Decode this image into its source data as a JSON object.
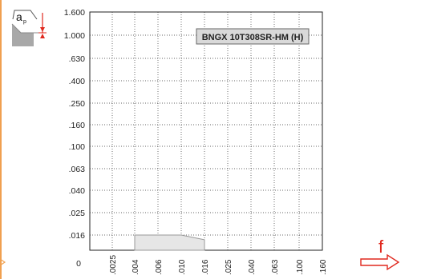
{
  "chart_data": {
    "type": "area",
    "legend": "BNGX 10T308SR-HM (H)",
    "y_ticks": [
      "1.600",
      "1.000",
      ".630",
      ".400",
      ".250",
      ".160",
      ".100",
      ".063",
      ".040",
      ".025",
      ".016",
      "0"
    ],
    "x_ticks": [
      ".0025",
      ".004",
      ".006",
      ".010",
      ".016",
      ".025",
      ".040",
      ".063",
      ".100",
      ".160"
    ],
    "region": {
      "f": [
        0.004,
        0.004,
        0.016,
        0.016,
        0.01,
        0.004
      ],
      "ap": [
        0.016,
        0.0,
        0.0,
        0.011,
        0.016,
        0.016
      ]
    },
    "xlabel": "f",
    "ylabel": "ap",
    "grid": true,
    "legend_position": "top-right",
    "colors": {
      "region_fill": "#e6e6e6",
      "region_stroke": "#999999",
      "axis_arrow": "#e0281e",
      "left_accent": "#f0a050"
    }
  }
}
